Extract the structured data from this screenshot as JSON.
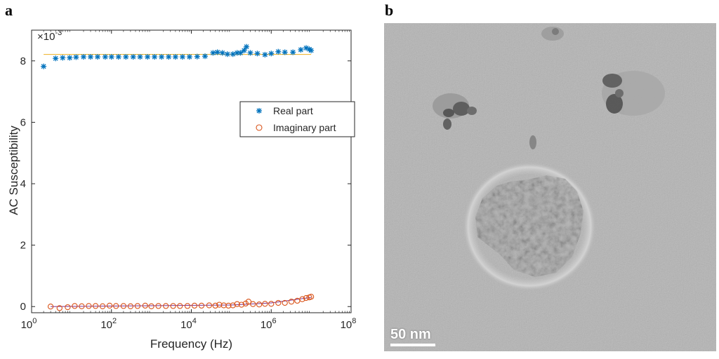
{
  "panels": {
    "a_label": "a",
    "b_label": "b"
  },
  "chart_data": {
    "type": "scatter",
    "title": "",
    "xlabel": "Frequency (Hz)",
    "ylabel": "AC Susceptibility",
    "y_exponent_label": "×10",
    "y_exponent_value": "-3",
    "x_scale": "log",
    "xlim": [
      1,
      100000000
    ],
    "ylim": [
      -0.0002,
      0.009
    ],
    "x_ticks": [
      1,
      100,
      10000,
      1000000,
      100000000
    ],
    "x_tick_labels": [
      {
        "base": "10",
        "exp": "0"
      },
      {
        "base": "10",
        "exp": "2"
      },
      {
        "base": "10",
        "exp": "4"
      },
      {
        "base": "10",
        "exp": "6"
      },
      {
        "base": "10",
        "exp": "8"
      }
    ],
    "y_ticks": [
      0,
      0.002,
      0.004,
      0.006,
      0.008
    ],
    "y_tick_labels": [
      "0",
      "2",
      "4",
      "6",
      "8"
    ],
    "grid": false,
    "legend_position": "center-right",
    "series": [
      {
        "name": "Real part",
        "marker": "asterisk",
        "color": "#0072BD",
        "points": [
          [
            2,
            0.00782
          ],
          [
            4,
            0.00808
          ],
          [
            6,
            0.0081
          ],
          [
            9,
            0.0081
          ],
          [
            13,
            0.00812
          ],
          [
            20,
            0.00813
          ],
          [
            30,
            0.00813
          ],
          [
            45,
            0.00813
          ],
          [
            70,
            0.00813
          ],
          [
            100,
            0.00813
          ],
          [
            150,
            0.00813
          ],
          [
            230,
            0.00813
          ],
          [
            350,
            0.00813
          ],
          [
            520,
            0.00813
          ],
          [
            800,
            0.00813
          ],
          [
            1200,
            0.00813
          ],
          [
            1800,
            0.00813
          ],
          [
            2700,
            0.00813
          ],
          [
            4000,
            0.00813
          ],
          [
            6000,
            0.00813
          ],
          [
            9000,
            0.00813
          ],
          [
            14000,
            0.00814
          ],
          [
            22000,
            0.00815
          ],
          [
            35000,
            0.00826
          ],
          [
            45000,
            0.00828
          ],
          [
            60000,
            0.00826
          ],
          [
            80000,
            0.00822
          ],
          [
            110000,
            0.00822
          ],
          [
            140000,
            0.00826
          ],
          [
            170000,
            0.00826
          ],
          [
            210000,
            0.00834
          ],
          [
            240000,
            0.00846
          ],
          [
            300000,
            0.00826
          ],
          [
            450000,
            0.00824
          ],
          [
            700000,
            0.0082
          ],
          [
            1000000,
            0.00824
          ],
          [
            1500000,
            0.0083
          ],
          [
            2200000,
            0.00828
          ],
          [
            3500000,
            0.00828
          ],
          [
            5500000,
            0.00836
          ],
          [
            7500000,
            0.00842
          ],
          [
            9000000,
            0.00838
          ],
          [
            10000000,
            0.00834
          ]
        ]
      },
      {
        "name": "Imaginary part",
        "marker": "circle",
        "color": "#D95319",
        "points": [
          [
            3,
            0.0
          ],
          [
            5,
            -5e-05
          ],
          [
            8,
            -2e-05
          ],
          [
            12,
            2e-05
          ],
          [
            18,
            1e-05
          ],
          [
            27,
            2e-05
          ],
          [
            40,
            2e-05
          ],
          [
            60,
            1e-05
          ],
          [
            90,
            3e-05
          ],
          [
            130,
            2e-05
          ],
          [
            200,
            2e-05
          ],
          [
            300,
            1e-05
          ],
          [
            450,
            2e-05
          ],
          [
            700,
            3e-05
          ],
          [
            1000,
            1e-05
          ],
          [
            1500,
            2e-05
          ],
          [
            2300,
            2e-05
          ],
          [
            3500,
            2e-05
          ],
          [
            5200,
            2e-05
          ],
          [
            8000,
            2e-05
          ],
          [
            12000,
            3e-05
          ],
          [
            18000,
            3e-05
          ],
          [
            28000,
            4e-05
          ],
          [
            40000,
            3e-05
          ],
          [
            50000,
            6e-05
          ],
          [
            65000,
            4e-05
          ],
          [
            85000,
            3e-05
          ],
          [
            110000,
            4e-05
          ],
          [
            140000,
            8e-05
          ],
          [
            180000,
            6e-05
          ],
          [
            230000,
            0.0001
          ],
          [
            270000,
            0.00016
          ],
          [
            350000,
            8e-05
          ],
          [
            500000,
            7e-05
          ],
          [
            700000,
            9e-05
          ],
          [
            1000000,
            9e-05
          ],
          [
            1500000,
            0.00012
          ],
          [
            2200000,
            0.00012
          ],
          [
            3200000,
            0.00016
          ],
          [
            4500000,
            0.00019
          ],
          [
            6000000,
            0.00024
          ],
          [
            7500000,
            0.00028
          ],
          [
            9000000,
            0.0003
          ],
          [
            10000000,
            0.00032
          ]
        ]
      }
    ],
    "fit_lines": [
      {
        "color": "#EDB120",
        "points": [
          [
            2,
            0.00821
          ],
          [
            10000000,
            0.00821
          ]
        ]
      },
      {
        "color": "#7E2F8E",
        "points": [
          [
            3,
            0.0
          ],
          [
            100000,
            5e-05
          ],
          [
            1000000,
            0.00012
          ],
          [
            10000000,
            0.0003
          ]
        ]
      }
    ]
  },
  "tem_image": {
    "scale_bar_label": "50 nm"
  }
}
